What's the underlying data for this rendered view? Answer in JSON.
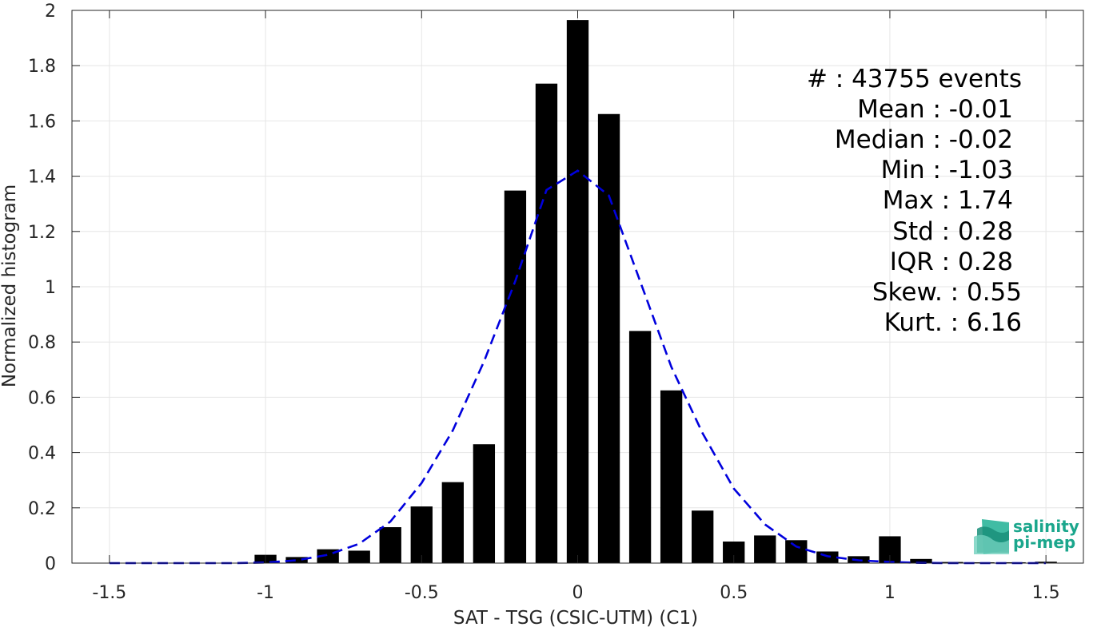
{
  "chart_data": {
    "type": "bar",
    "xlabel": "SAT - TSG (CSIC-UTM) (C1)",
    "ylabel": "Normalized histogram",
    "xlim": [
      -1.62,
      1.62
    ],
    "ylim": [
      0,
      2
    ],
    "x_ticks": [
      "-1.5",
      "-1",
      "-0.5",
      "0",
      "0.5",
      "1",
      "1.5"
    ],
    "x_tick_values": [
      -1.5,
      -1,
      -0.5,
      0,
      0.5,
      1,
      1.5
    ],
    "y_ticks": [
      "0",
      "0.2",
      "0.4",
      "0.6",
      "0.8",
      "1",
      "1.2",
      "1.4",
      "1.6",
      "1.8",
      "2"
    ],
    "y_tick_values": [
      0,
      0.2,
      0.4,
      0.6,
      0.8,
      1,
      1.2,
      1.4,
      1.6,
      1.8,
      2
    ],
    "grid": true,
    "bar_color": "#000000",
    "bar_width": 0.07,
    "bars": {
      "x": [
        -1.0,
        -0.9,
        -0.8,
        -0.7,
        -0.6,
        -0.5,
        -0.4,
        -0.3,
        -0.2,
        -0.1,
        0.0,
        0.1,
        0.2,
        0.3,
        0.4,
        0.5,
        0.6,
        0.7,
        0.8,
        0.9,
        1.0,
        1.1,
        1.2,
        1.3,
        1.4,
        1.5
      ],
      "values": [
        0.03,
        0.022,
        0.05,
        0.045,
        0.13,
        0.205,
        0.293,
        0.43,
        1.348,
        1.735,
        1.965,
        1.625,
        0.84,
        0.625,
        0.19,
        0.078,
        0.1,
        0.083,
        0.042,
        0.025,
        0.097,
        0.015,
        0.004,
        0.003,
        0.003,
        0.005
      ]
    },
    "fit_curve": {
      "style": "dashed",
      "color": "#0000dd",
      "x": [
        -1.5,
        -1.4,
        -1.3,
        -1.2,
        -1.1,
        -1.0,
        -0.9,
        -0.8,
        -0.7,
        -0.6,
        -0.5,
        -0.4,
        -0.3,
        -0.2,
        -0.1,
        0.0,
        0.1,
        0.2,
        0.3,
        0.4,
        0.5,
        0.6,
        0.7,
        0.8,
        0.9,
        1.0,
        1.1,
        1.2,
        1.3,
        1.4,
        1.5
      ],
      "y": [
        0,
        0,
        0,
        0,
        0,
        0.002,
        0.01,
        0.03,
        0.07,
        0.15,
        0.29,
        0.48,
        0.73,
        1.02,
        1.35,
        1.42,
        1.33,
        1.02,
        0.71,
        0.47,
        0.27,
        0.14,
        0.06,
        0.025,
        0.01,
        0.004,
        0.001,
        0,
        0,
        0,
        0
      ]
    }
  },
  "stats": [
    {
      "label": "#  ",
      "value": ": 43755 events"
    },
    {
      "label": "Mean ",
      "value": ": -0.01"
    },
    {
      "label": "Median ",
      "value": ": -0.02"
    },
    {
      "label": "Min ",
      "value": ": -1.03"
    },
    {
      "label": "Max ",
      "value": ": 1.74"
    },
    {
      "label": "Std ",
      "value": ": 0.28"
    },
    {
      "label": "IQR ",
      "value": ": 0.28"
    },
    {
      "label": "Skew. ",
      "value": ": 0.55"
    },
    {
      "label": "Kurt. ",
      "value": ": 6.16"
    }
  ],
  "logo": {
    "line1": "salinity",
    "line2": "pi-mep",
    "color": "#1aa68c"
  }
}
